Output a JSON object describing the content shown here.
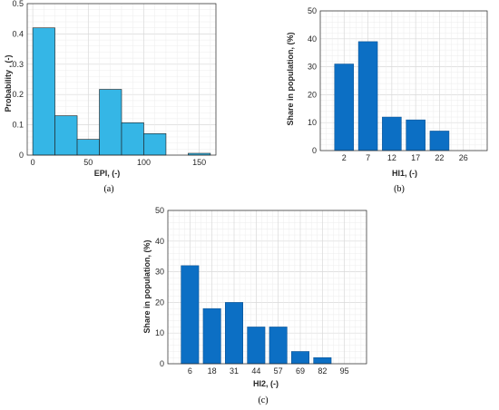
{
  "chart_data": [
    {
      "type": "bar",
      "panel": "(a)",
      "xlabel": "EPI, (-)",
      "ylabel": "Probability , (-)",
      "xlim": [
        -5,
        165
      ],
      "ylim": [
        0,
        0.5
      ],
      "xticks": [
        0,
        50,
        100,
        150
      ],
      "yticks": [
        0,
        0.1,
        0.2,
        0.3,
        0.4,
        0.5
      ],
      "bin_edges": [
        0,
        20,
        40,
        60,
        80,
        100,
        120,
        140,
        160
      ],
      "values": [
        0.42,
        0.13,
        0.052,
        0.217,
        0.107,
        0.071,
        0,
        0.006
      ],
      "grid": true,
      "color": "#35b6e6"
    },
    {
      "type": "bar",
      "panel": "(b)",
      "xlabel": "HI1, (-)",
      "ylabel": "Share in population, (%)",
      "categories": [
        "2",
        "7",
        "12",
        "17",
        "22",
        "26"
      ],
      "values": [
        31,
        39,
        12,
        11,
        7,
        0
      ],
      "ylim": [
        0,
        50
      ],
      "yticks": [
        0,
        10,
        20,
        30,
        40,
        50
      ],
      "grid": true,
      "color": "#0c6fc4"
    },
    {
      "type": "bar",
      "panel": "(c)",
      "xlabel": "HI2, (-)",
      "ylabel": "Share in population, (%)",
      "categories": [
        "6",
        "18",
        "31",
        "44",
        "57",
        "69",
        "82",
        "95"
      ],
      "values": [
        32,
        18,
        20,
        12,
        12,
        4,
        2,
        0
      ],
      "ylim": [
        0,
        50
      ],
      "yticks": [
        0,
        10,
        20,
        30,
        40,
        50
      ],
      "grid": true,
      "color": "#0c6fc4"
    }
  ]
}
